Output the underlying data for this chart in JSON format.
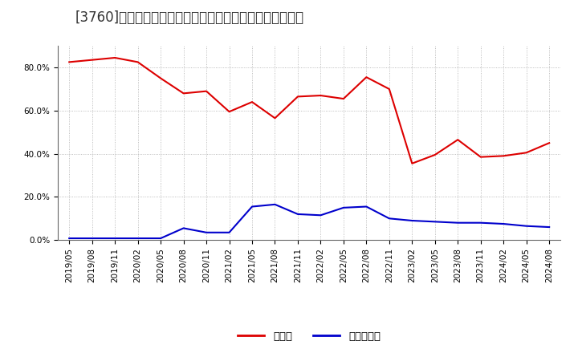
{
  "title": "[3760]　現預金、有利子負債の総資産に対する比率の推移",
  "x_labels": [
    "2019/05",
    "2019/08",
    "2019/11",
    "2020/02",
    "2020/05",
    "2020/08",
    "2020/11",
    "2021/02",
    "2021/05",
    "2021/08",
    "2021/11",
    "2022/02",
    "2022/05",
    "2022/08",
    "2022/11",
    "2023/02",
    "2023/05",
    "2023/08",
    "2023/11",
    "2024/02",
    "2024/05",
    "2024/08"
  ],
  "cash_values": [
    82.5,
    83.5,
    84.5,
    82.5,
    75.0,
    68.0,
    69.0,
    59.5,
    64.0,
    56.5,
    66.5,
    67.0,
    65.5,
    75.5,
    70.0,
    35.5,
    39.5,
    46.5,
    38.5,
    39.0,
    40.5,
    45.0
  ],
  "debt_values": [
    0.8,
    0.8,
    0.8,
    0.8,
    0.8,
    5.5,
    3.5,
    3.5,
    15.5,
    16.5,
    12.0,
    11.5,
    15.0,
    15.5,
    10.0,
    9.0,
    8.5,
    8.0,
    8.0,
    7.5,
    6.5,
    6.0
  ],
  "cash_color": "#dd0000",
  "debt_color": "#0000cc",
  "background_color": "#ffffff",
  "grid_color": "#aaaaaa",
  "ylim": [
    0,
    90
  ],
  "yticks": [
    0,
    20,
    40,
    60,
    80
  ],
  "ytick_labels": [
    "0.0%",
    "20.0%",
    "40.0%",
    "60.0%",
    "80.0%"
  ],
  "legend_cash": "現預金",
  "legend_debt": "有利子負債",
  "title_fontsize": 12,
  "tick_fontsize": 7.5,
  "legend_fontsize": 9.5
}
